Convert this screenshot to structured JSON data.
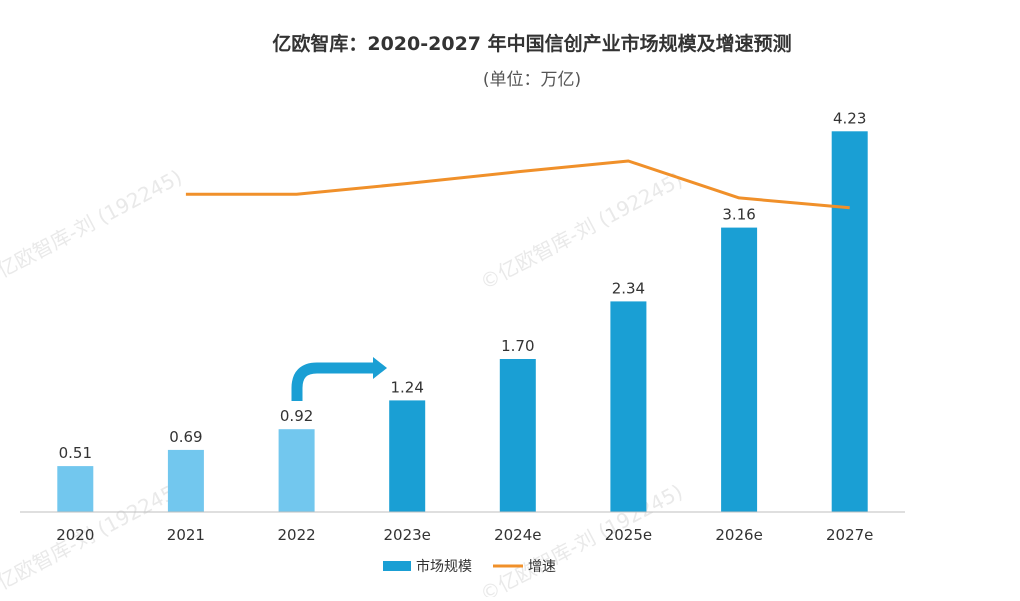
{
  "chart_data": {
    "type": "bar",
    "title": "亿欧智库：2020-2027 年中国信创产业市场规模及增速预测",
    "subtitle": "(单位：万亿)",
    "categories": [
      "2020",
      "2021",
      "2022",
      "2023e",
      "2024e",
      "2025e",
      "2026e",
      "2027e"
    ],
    "series": [
      {
        "name": "市场规模",
        "type": "bar",
        "values": [
          0.51,
          0.69,
          0.92,
          1.24,
          1.7,
          2.34,
          3.16,
          4.23
        ],
        "value_labels": [
          "0.51",
          "0.69",
          "0.92",
          "1.24",
          "1.70",
          "2.34",
          "3.16",
          "4.23"
        ],
        "actual_color": "#72c7ee",
        "forecast_color": "#1a9fd4"
      },
      {
        "name": "增速",
        "type": "line",
        "values": [
          null,
          35.3,
          35.3,
          36.5,
          37.8,
          39.0,
          34.9,
          33.8
        ],
        "color": "#f0902a",
        "ylim": [
          0,
          45
        ]
      }
    ],
    "ylim": [
      0,
      4.5
    ],
    "legend_position": "bottom-center",
    "grid": false,
    "watermark": [
      "亿欧智库-刘 (192245)",
      "©亿欧智库-刘 (192245)",
      "亿欧智库-刘 (192245)",
      "©亿欧智库-刘 (192245)"
    ]
  }
}
